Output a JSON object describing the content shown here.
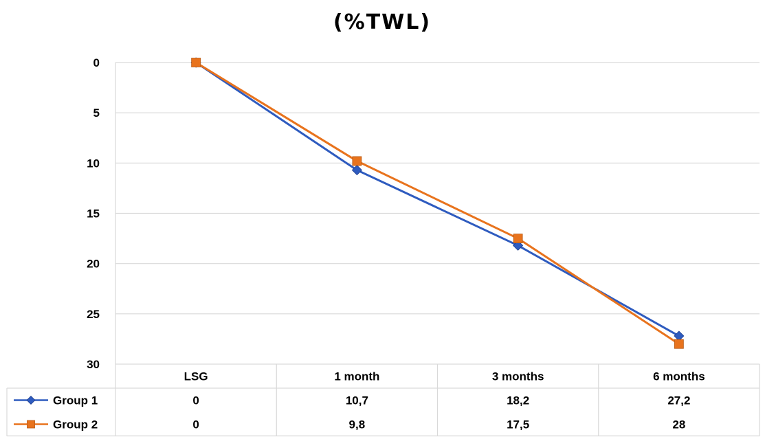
{
  "chart_data": {
    "type": "line",
    "title": "(%TWL)",
    "categories": [
      "LSG",
      "1 month",
      "3 months",
      "6 months"
    ],
    "y_reversed": true,
    "ylim": [
      0,
      30
    ],
    "yticks": [
      "0",
      "5",
      "10",
      "15",
      "20",
      "25",
      "30"
    ],
    "grid": true,
    "legend": "data-table",
    "series": [
      {
        "name": "Group 1",
        "values": [
          0,
          10.7,
          18.2,
          27.2
        ],
        "labels": [
          "0",
          "10,7",
          "18,2",
          "27,2"
        ],
        "color": "#2e5bbf",
        "marker": "diamond"
      },
      {
        "name": "Group 2",
        "values": [
          0,
          9.8,
          17.5,
          28
        ],
        "labels": [
          "0",
          "9,8",
          "17,5",
          "28"
        ],
        "color": "#e8731d",
        "marker": "square"
      }
    ]
  }
}
